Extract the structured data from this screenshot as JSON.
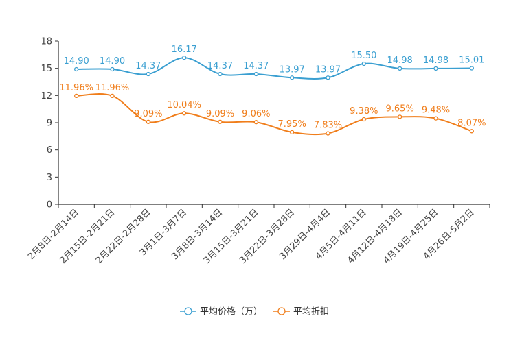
{
  "chart_data": {
    "type": "line",
    "categories": [
      "2月8日-2月14日",
      "2月15日-2月21日",
      "2月22日-2月28日",
      "3月1日-3月7日",
      "3月8日-3月14日",
      "3月15日-3月21日",
      "3月22日-3月28日",
      "3月29日-4月4日",
      "4月5日-4月11日",
      "4月12日-4月18日",
      "4月19日-4月25日",
      "4月26日-5月2日"
    ],
    "series": [
      {
        "name": "平均价格（万）",
        "color": "#3a9fd1",
        "values": [
          14.9,
          14.9,
          14.37,
          16.17,
          14.37,
          14.37,
          13.97,
          13.97,
          15.5,
          14.98,
          14.98,
          15.01
        ],
        "labels": [
          "14.90",
          "14.90",
          "14.37",
          "16.17",
          "14.37",
          "14.37",
          "13.97",
          "13.97",
          "15.50",
          "14.98",
          "14.98",
          "15.01"
        ]
      },
      {
        "name": "平均折扣",
        "color": "#f07d1a",
        "values": [
          11.96,
          11.96,
          9.09,
          10.04,
          9.09,
          9.06,
          7.95,
          7.83,
          9.38,
          9.65,
          9.48,
          8.07
        ],
        "labels": [
          "11.96%",
          "11.96%",
          "9.09%",
          "10.04%",
          "9.09%",
          "9.06%",
          "7.95%",
          "7.83%",
          "9.38%",
          "9.65%",
          "9.48%",
          "8.07%"
        ]
      }
    ],
    "yticks": [
      "0",
      "3",
      "6",
      "9",
      "12",
      "15",
      "18"
    ],
    "ylim": [
      0,
      18
    ],
    "legend_position": "bottom-center",
    "grid": false
  }
}
